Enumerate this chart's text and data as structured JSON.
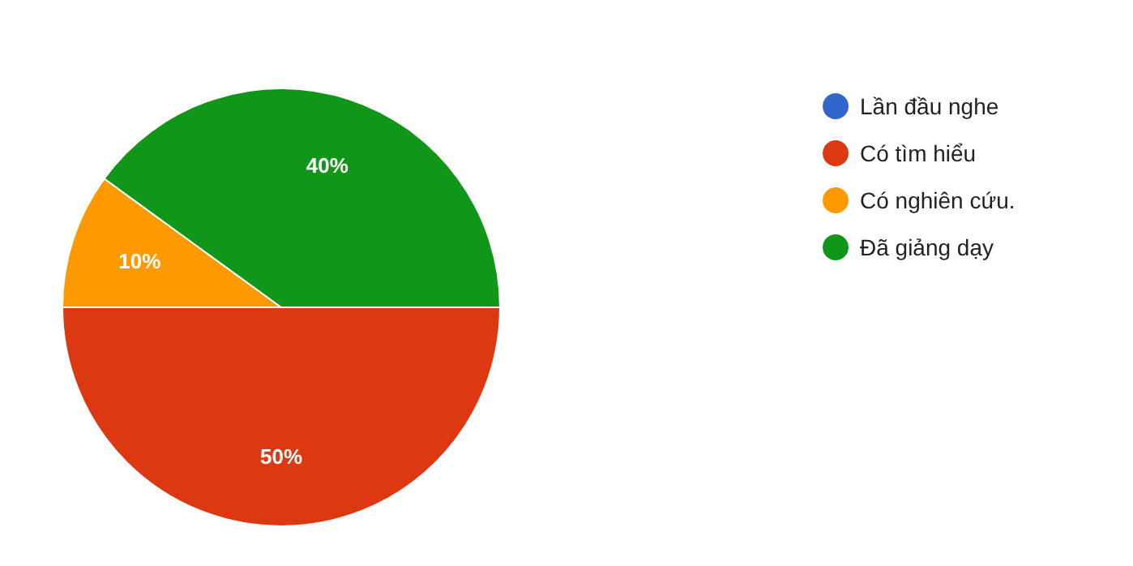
{
  "chart_data": {
    "type": "pie",
    "categories": [
      "Lần đầu nghe",
      "Có tìm hiểu",
      "Có nghiên cứu.",
      "Đã giảng dạy"
    ],
    "values": [
      0,
      50,
      10,
      40
    ],
    "colors": [
      "#3366cc",
      "#dc3912",
      "#ff9900",
      "#109618"
    ],
    "value_labels": [
      null,
      "50%",
      "10%",
      "40%"
    ],
    "legend": "right"
  }
}
